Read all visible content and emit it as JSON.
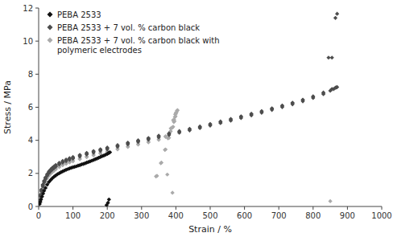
{
  "chart_data": {
    "type": "scatter",
    "xlabel": "Strain / %",
    "ylabel": "Stress / MPa",
    "xlim": [
      0,
      1000
    ],
    "ylim": [
      0,
      12
    ],
    "xticks": [
      0,
      100,
      200,
      300,
      400,
      500,
      600,
      700,
      800,
      900,
      1000
    ],
    "yticks": [
      0,
      2,
      4,
      6,
      8,
      10,
      12
    ],
    "grid": false,
    "legend": "upper left",
    "marker": "diamond",
    "series": [
      {
        "name": "PEBA 2533",
        "color": "#111111",
        "x": [
          3,
          5,
          7,
          10,
          13,
          16,
          20,
          25,
          30,
          35,
          40,
          45,
          50,
          55,
          60,
          65,
          70,
          75,
          80,
          85,
          90,
          95,
          100,
          105,
          110,
          115,
          120,
          125,
          130,
          135,
          140,
          145,
          150,
          155,
          160,
          165,
          170,
          175,
          180,
          185,
          190,
          195,
          200,
          203,
          206,
          208,
          205,
          202,
          198
        ],
        "values": [
          0.15,
          0.28,
          0.42,
          0.6,
          0.78,
          0.95,
          1.12,
          1.32,
          1.48,
          1.6,
          1.71,
          1.8,
          1.88,
          1.95,
          2.01,
          2.07,
          2.12,
          2.17,
          2.22,
          2.26,
          2.3,
          2.34,
          2.37,
          2.4,
          2.43,
          2.47,
          2.5,
          2.54,
          2.57,
          2.61,
          2.65,
          2.69,
          2.73,
          2.77,
          2.81,
          2.86,
          2.9,
          2.95,
          2.99,
          3.04,
          3.08,
          3.13,
          3.18,
          3.22,
          3.25,
          3.28,
          0.42,
          0.22,
          0.08
        ]
      },
      {
        "name": "PEBA 2533 + 7 vol. % carbon black",
        "color": "#4d4d4d",
        "x": [
          3,
          5,
          8,
          12,
          16,
          20,
          25,
          30,
          35,
          40,
          45,
          50,
          60,
          70,
          80,
          90,
          100,
          120,
          140,
          160,
          180,
          200,
          230,
          260,
          290,
          320,
          350,
          380,
          410,
          440,
          470,
          500,
          530,
          560,
          590,
          620,
          650,
          680,
          710,
          740,
          770,
          800,
          830,
          855,
          865,
          870
        ],
        "values": [
          0.35,
          0.65,
          0.98,
          1.28,
          1.52,
          1.72,
          1.92,
          2.08,
          2.2,
          2.3,
          2.39,
          2.47,
          2.6,
          2.71,
          2.8,
          2.88,
          2.95,
          3.08,
          3.2,
          3.31,
          3.42,
          3.52,
          3.67,
          3.82,
          3.96,
          4.1,
          4.24,
          4.38,
          4.52,
          4.66,
          4.8,
          4.95,
          5.1,
          5.25,
          5.41,
          5.57,
          5.73,
          5.9,
          6.07,
          6.24,
          6.42,
          6.62,
          6.85,
          7.1,
          7.18,
          7.22
        ]
      },
      {
        "color": "#4d4d4d",
        "x": [
          3,
          5,
          8,
          12,
          16,
          20,
          25,
          30,
          35,
          40,
          45,
          50,
          60,
          70,
          80,
          90,
          100,
          120,
          140,
          160,
          180,
          200,
          230,
          260,
          290,
          320,
          350,
          380,
          410,
          440,
          470,
          500,
          530,
          560,
          590,
          620,
          650,
          680,
          710,
          740,
          770,
          800,
          830,
          855,
          865,
          870
        ],
        "values": [
          0.38,
          0.7,
          1.02,
          1.32,
          1.56,
          1.76,
          1.96,
          2.12,
          2.24,
          2.34,
          2.43,
          2.51,
          2.64,
          2.75,
          2.84,
          2.92,
          2.99,
          3.12,
          3.24,
          3.35,
          3.46,
          3.56,
          3.71,
          3.86,
          4.0,
          4.14,
          4.28,
          4.42,
          4.56,
          4.7,
          4.84,
          4.99,
          5.14,
          5.29,
          5.45,
          5.61,
          5.77,
          5.94,
          6.11,
          6.28,
          6.46,
          6.66,
          6.89,
          9.0,
          11.4,
          11.65
        ]
      },
      {
        "color": "#4d4d4d",
        "x": [
          3,
          5,
          8,
          12,
          16,
          20,
          25,
          30,
          35,
          40,
          45,
          50,
          60,
          70,
          80,
          90,
          100,
          120,
          140,
          160,
          180,
          200,
          230,
          260,
          290,
          320,
          350,
          380,
          410,
          440,
          470,
          500,
          530,
          560,
          590,
          620,
          650,
          680,
          710,
          740,
          770,
          800,
          830,
          850,
          860,
          868
        ],
        "values": [
          0.32,
          0.6,
          0.92,
          1.22,
          1.46,
          1.66,
          1.86,
          2.02,
          2.14,
          2.24,
          2.33,
          2.41,
          2.54,
          2.65,
          2.74,
          2.82,
          2.89,
          3.02,
          3.14,
          3.25,
          3.36,
          3.46,
          3.61,
          3.76,
          3.9,
          4.04,
          4.18,
          4.32,
          4.46,
          4.6,
          4.74,
          4.89,
          5.04,
          5.19,
          5.35,
          5.51,
          5.67,
          5.84,
          6.01,
          6.18,
          6.36,
          6.56,
          6.79,
          7.0,
          7.1,
          7.2
        ]
      },
      {
        "color": "#4d4d4d",
        "x": [
          845
        ],
        "values": [
          9.0
        ]
      },
      {
        "name": "PEBA 2533 + 7 vol. % carbon black with\npolymeric electrodes",
        "color": "#aaaaaa",
        "x": [
          3,
          5,
          8,
          12,
          16,
          20,
          25,
          30,
          35,
          40,
          45,
          50,
          60,
          70,
          80,
          90,
          100,
          120,
          140,
          160,
          180,
          200,
          230,
          260,
          290,
          320,
          350,
          370,
          385,
          392,
          396,
          399,
          402,
          405,
          400,
          395,
          388,
          380,
          370,
          358,
          345
        ],
        "values": [
          0.25,
          0.5,
          0.8,
          1.1,
          1.35,
          1.55,
          1.75,
          1.9,
          2.02,
          2.12,
          2.21,
          2.29,
          2.42,
          2.53,
          2.62,
          2.7,
          2.77,
          2.9,
          3.02,
          3.13,
          3.24,
          3.34,
          3.49,
          3.64,
          3.78,
          3.92,
          4.07,
          4.25,
          4.55,
          4.82,
          5.15,
          5.45,
          5.7,
          5.82,
          5.6,
          5.25,
          4.75,
          4.15,
          3.45,
          2.65,
          1.85
        ]
      },
      {
        "color": "#aaaaaa",
        "x": [
          3,
          5,
          8,
          12,
          16,
          20,
          25,
          30,
          35,
          40,
          45,
          50,
          60,
          70,
          80,
          90,
          100,
          120,
          140,
          160,
          180,
          200,
          230,
          260,
          290,
          320,
          350,
          370,
          383,
          390,
          394,
          397,
          400,
          403,
          398,
          392,
          385,
          377,
          368,
          356,
          342
        ],
        "values": [
          0.22,
          0.46,
          0.76,
          1.06,
          1.31,
          1.51,
          1.71,
          1.86,
          1.98,
          2.08,
          2.17,
          2.25,
          2.38,
          2.49,
          2.58,
          2.66,
          2.73,
          2.86,
          2.98,
          3.09,
          3.2,
          3.3,
          3.45,
          3.6,
          3.74,
          3.88,
          4.03,
          4.21,
          4.51,
          4.78,
          5.11,
          5.41,
          5.67,
          5.79,
          5.57,
          5.22,
          4.72,
          4.12,
          3.42,
          2.62,
          1.82
        ]
      },
      {
        "color": "#aaaaaa",
        "x": [
          375,
          390,
          850
        ],
        "values": [
          1.93,
          0.83,
          0.32
        ]
      }
    ]
  }
}
